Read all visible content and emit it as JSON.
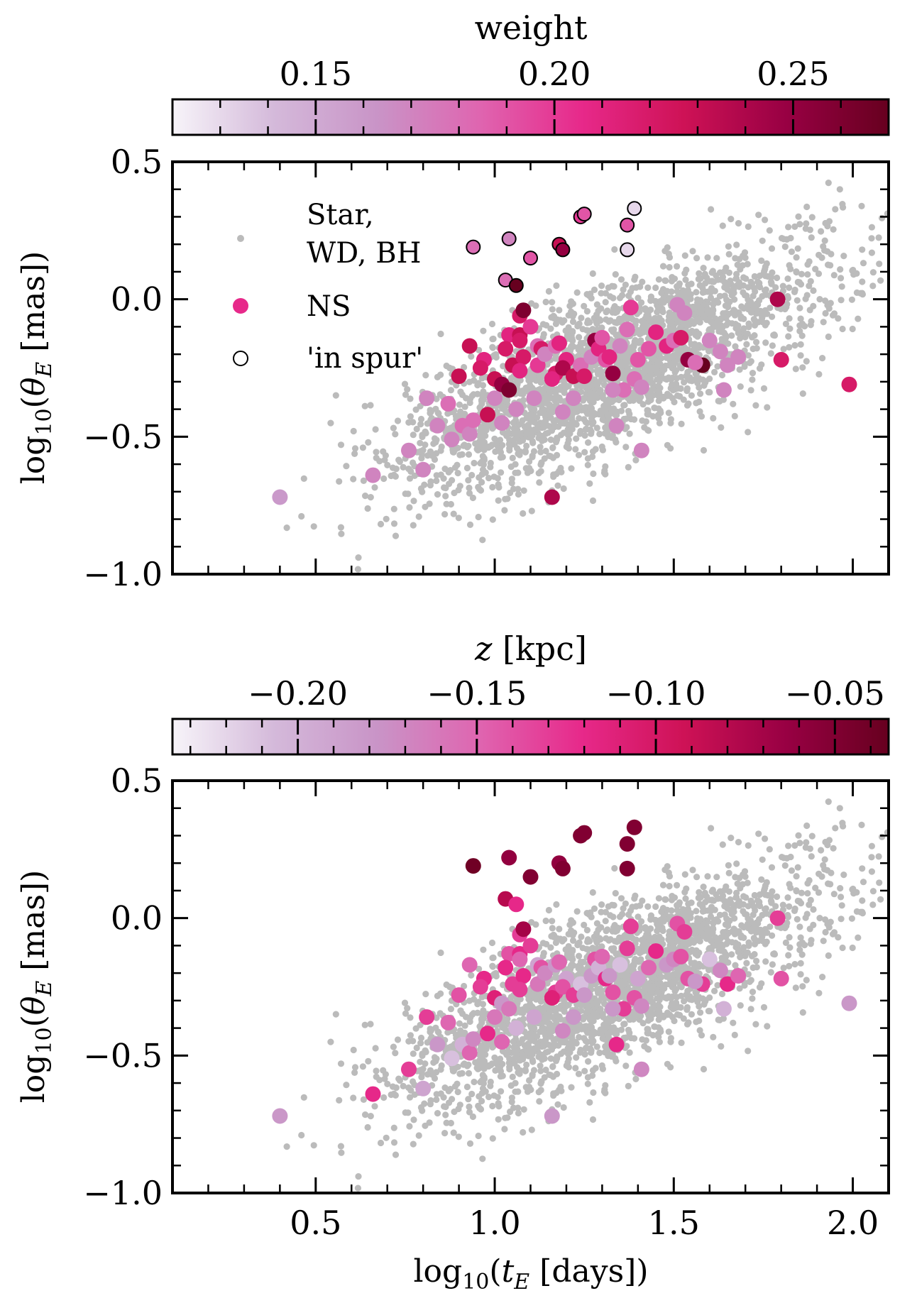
{
  "chart_data": [
    {
      "type": "scatter",
      "panel": "top",
      "xlabel_main": "log",
      "xlabel_sub": "10",
      "xlabel_var": "t",
      "xlabel_var_sub": "E",
      "xlabel_units": "[days]",
      "ylabel_main": "log",
      "ylabel_sub": "10",
      "ylabel_var": "θ",
      "ylabel_var_sub": "E",
      "ylabel_units": "[mas]",
      "xlim": [
        0.1,
        2.1
      ],
      "ylim": [
        -1.0,
        0.5
      ],
      "xticks": [
        0.5,
        1.0,
        1.5,
        2.0
      ],
      "yticks": [
        "0.5",
        "0.0",
        "−0.5",
        "−1.0"
      ],
      "ytick_values": [
        0.5,
        0.0,
        -0.5,
        -1.0
      ],
      "colorbar": {
        "label": "weight",
        "range": [
          0.12,
          0.27
        ],
        "ticks": [
          0.15,
          0.2,
          0.25
        ],
        "tick_labels": [
          "0.15",
          "0.20",
          "0.25"
        ],
        "colormap": [
          "#f7f4f9",
          "#d4b9da",
          "#c994c7",
          "#df65b0",
          "#e7298a",
          "#ce1256",
          "#980043",
          "#67001f"
        ]
      },
      "legend": {
        "position": "top-left",
        "entries": [
          "Star,",
          "WD, BH",
          "NS",
          "'in spur'"
        ]
      },
      "background_series": {
        "name": "Star, WD, BH",
        "color": "#bbbbbb",
        "seed": 7,
        "count": 2600
      },
      "ns_series": {
        "name": "NS",
        "points": [
          [
            0.94,
            0.19,
            0.18
          ],
          [
            1.04,
            0.22,
            0.17
          ],
          [
            1.1,
            0.15,
            0.19
          ],
          [
            1.18,
            0.2,
            0.23
          ],
          [
            1.19,
            0.18,
            0.25
          ],
          [
            1.24,
            0.3,
            0.2
          ],
          [
            1.25,
            0.31,
            0.19
          ],
          [
            1.37,
            0.27,
            0.19
          ],
          [
            1.39,
            0.33,
            0.13
          ],
          [
            1.37,
            0.18,
            0.13
          ],
          [
            1.03,
            0.07,
            0.18
          ],
          [
            1.06,
            0.05,
            0.27
          ],
          [
            0.9,
            -0.28,
            0.23
          ],
          [
            0.93,
            -0.17,
            0.23
          ],
          [
            0.97,
            -0.22,
            0.21
          ],
          [
            0.96,
            -0.25,
            0.22
          ],
          [
            1.0,
            -0.29,
            0.23
          ],
          [
            1.02,
            -0.31,
            0.25
          ],
          [
            1.04,
            -0.33,
            0.26
          ],
          [
            1.04,
            -0.13,
            0.21
          ],
          [
            1.03,
            -0.18,
            0.22
          ],
          [
            1.05,
            -0.24,
            0.23
          ],
          [
            1.07,
            -0.06,
            0.22
          ],
          [
            1.08,
            -0.04,
            0.26
          ],
          [
            1.07,
            -0.13,
            0.23
          ],
          [
            1.07,
            -0.15,
            0.22
          ],
          [
            1.08,
            -0.21,
            0.22
          ],
          [
            1.07,
            -0.26,
            0.21
          ],
          [
            1.1,
            -0.1,
            0.2
          ],
          [
            1.12,
            -0.17,
            0.18
          ],
          [
            1.13,
            -0.18,
            0.22
          ],
          [
            1.12,
            -0.24,
            0.2
          ],
          [
            1.14,
            -0.2,
            0.17
          ],
          [
            1.17,
            -0.17,
            0.18
          ],
          [
            1.18,
            -0.16,
            0.21
          ],
          [
            1.17,
            -0.27,
            0.22
          ],
          [
            1.16,
            -0.29,
            0.21
          ],
          [
            1.2,
            -0.22,
            0.21
          ],
          [
            1.19,
            -0.25,
            0.24
          ],
          [
            1.22,
            -0.28,
            0.23
          ],
          [
            1.24,
            -0.24,
            0.18
          ],
          [
            1.25,
            -0.28,
            0.22
          ],
          [
            1.27,
            -0.21,
            0.17
          ],
          [
            1.28,
            -0.15,
            0.25
          ],
          [
            1.29,
            -0.18,
            0.21
          ],
          [
            1.3,
            -0.14,
            0.19
          ],
          [
            1.31,
            -0.22,
            0.19
          ],
          [
            1.33,
            -0.27,
            0.25
          ],
          [
            1.32,
            -0.21,
            0.21
          ],
          [
            1.35,
            -0.17,
            0.17
          ],
          [
            1.36,
            -0.33,
            0.18
          ],
          [
            1.38,
            -0.03,
            0.2
          ],
          [
            1.37,
            -0.11,
            0.18
          ],
          [
            1.4,
            -0.22,
            0.19
          ],
          [
            1.43,
            -0.18,
            0.19
          ],
          [
            1.45,
            -0.12,
            0.21
          ],
          [
            1.48,
            -0.17,
            0.21
          ],
          [
            1.5,
            -0.15,
            0.18
          ],
          [
            1.52,
            -0.14,
            0.22
          ],
          [
            1.54,
            -0.22,
            0.25
          ],
          [
            1.58,
            -0.24,
            0.27
          ],
          [
            1.6,
            -0.15,
            0.17
          ],
          [
            1.63,
            -0.19,
            0.17
          ],
          [
            1.65,
            -0.24,
            0.17
          ],
          [
            1.68,
            -0.21,
            0.17
          ],
          [
            1.79,
            0.0,
            0.24
          ],
          [
            1.8,
            -0.22,
            0.22
          ],
          [
            1.99,
            -0.31,
            0.22
          ],
          [
            1.16,
            -0.72,
            0.24
          ],
          [
            1.33,
            -0.33,
            0.17
          ],
          [
            1.39,
            -0.29,
            0.18
          ],
          [
            1.22,
            -0.36,
            0.17
          ],
          [
            1.11,
            -0.36,
            0.17
          ],
          [
            1.0,
            -0.36,
            0.17
          ],
          [
            0.87,
            -0.38,
            0.18
          ],
          [
            0.84,
            -0.46,
            0.17
          ],
          [
            0.88,
            -0.51,
            0.17
          ],
          [
            0.91,
            -0.46,
            0.18
          ],
          [
            0.93,
            -0.49,
            0.17
          ],
          [
            0.76,
            -0.55,
            0.17
          ],
          [
            0.8,
            -0.62,
            0.17
          ],
          [
            0.66,
            -0.64,
            0.17
          ],
          [
            0.4,
            -0.72,
            0.16
          ],
          [
            0.98,
            -0.42,
            0.23
          ],
          [
            1.02,
            -0.45,
            0.17
          ],
          [
            1.06,
            -0.4,
            0.17
          ],
          [
            1.19,
            -0.41,
            0.17
          ],
          [
            1.41,
            -0.55,
            0.17
          ],
          [
            0.81,
            -0.36,
            0.17
          ],
          [
            0.94,
            -0.44,
            0.18
          ],
          [
            1.51,
            -0.02,
            0.17
          ],
          [
            1.53,
            -0.05,
            0.17
          ],
          [
            1.41,
            -0.32,
            0.17
          ],
          [
            1.34,
            -0.46,
            0.17
          ],
          [
            1.56,
            -0.23,
            0.18
          ],
          [
            1.64,
            -0.33,
            0.17
          ]
        ],
        "in_spur_count": 12
      }
    },
    {
      "type": "scatter",
      "panel": "bottom",
      "xlabel_main": "log",
      "xlabel_sub": "10",
      "xlabel_var": "t",
      "xlabel_var_sub": "E",
      "xlabel_units": "[days]",
      "ylabel_main": "log",
      "ylabel_sub": "10",
      "ylabel_var": "θ",
      "ylabel_var_sub": "E",
      "ylabel_units": "[mas]",
      "xlim": [
        0.1,
        2.1
      ],
      "ylim": [
        -1.0,
        0.5
      ],
      "xticks": [
        0.5,
        1.0,
        1.5,
        2.0
      ],
      "xtick_labels": [
        "0.5",
        "1.0",
        "1.5",
        "2.0"
      ],
      "yticks": [
        "0.5",
        "0.0",
        "−0.5",
        "−1.0"
      ],
      "ytick_values": [
        0.5,
        0.0,
        -0.5,
        -1.0
      ],
      "colorbar": {
        "label_var": "z",
        "label_units": "[kpc]",
        "range": [
          -0.235,
          -0.035
        ],
        "ticks": [
          -0.2,
          -0.15,
          -0.1,
          -0.05
        ],
        "tick_labels": [
          "−0.20",
          "−0.15",
          "−0.10",
          "−0.05"
        ],
        "colormap": [
          "#f7f4f9",
          "#d4b9da",
          "#c994c7",
          "#df65b0",
          "#e7298a",
          "#ce1256",
          "#980043",
          "#67001f"
        ]
      },
      "background_series": {
        "name": "Star, WD, BH",
        "color": "#bbbbbb",
        "seed": 7,
        "count": 2600
      },
      "ns_series": {
        "name": "NS",
        "points": [
          [
            0.94,
            0.19,
            -0.04
          ],
          [
            1.04,
            0.22,
            -0.06
          ],
          [
            1.1,
            0.15,
            -0.05
          ],
          [
            1.18,
            0.2,
            -0.06
          ],
          [
            1.19,
            0.18,
            -0.05
          ],
          [
            1.24,
            0.3,
            -0.05
          ],
          [
            1.25,
            0.31,
            -0.05
          ],
          [
            1.37,
            0.27,
            -0.05
          ],
          [
            1.39,
            0.33,
            -0.05
          ],
          [
            1.37,
            0.18,
            -0.05
          ],
          [
            1.03,
            0.07,
            -0.08
          ],
          [
            1.06,
            0.05,
            -0.12
          ],
          [
            0.9,
            -0.28,
            -0.14
          ],
          [
            0.93,
            -0.17,
            -0.15
          ],
          [
            0.97,
            -0.22,
            -0.12
          ],
          [
            0.96,
            -0.25,
            -0.13
          ],
          [
            1.0,
            -0.29,
            -0.11
          ],
          [
            1.02,
            -0.31,
            -0.18
          ],
          [
            1.04,
            -0.33,
            -0.16
          ],
          [
            1.04,
            -0.13,
            -0.14
          ],
          [
            1.03,
            -0.18,
            -0.12
          ],
          [
            1.05,
            -0.24,
            -0.13
          ],
          [
            1.07,
            -0.06,
            -0.13
          ],
          [
            1.08,
            -0.04,
            -0.07
          ],
          [
            1.07,
            -0.13,
            -0.12
          ],
          [
            1.07,
            -0.15,
            -0.15
          ],
          [
            1.08,
            -0.21,
            -0.12
          ],
          [
            1.07,
            -0.26,
            -0.13
          ],
          [
            1.1,
            -0.1,
            -0.13
          ],
          [
            1.12,
            -0.17,
            -0.19
          ],
          [
            1.13,
            -0.18,
            -0.14
          ],
          [
            1.12,
            -0.24,
            -0.16
          ],
          [
            1.14,
            -0.2,
            -0.17
          ],
          [
            1.17,
            -0.17,
            -0.18
          ],
          [
            1.18,
            -0.16,
            -0.15
          ],
          [
            1.17,
            -0.27,
            -0.13
          ],
          [
            1.16,
            -0.29,
            -0.11
          ],
          [
            1.2,
            -0.22,
            -0.19
          ],
          [
            1.19,
            -0.25,
            -0.14
          ],
          [
            1.22,
            -0.28,
            -0.13
          ],
          [
            1.24,
            -0.24,
            -0.21
          ],
          [
            1.25,
            -0.28,
            -0.18
          ],
          [
            1.27,
            -0.21,
            -0.18
          ],
          [
            1.28,
            -0.15,
            -0.14
          ],
          [
            1.29,
            -0.18,
            -0.2
          ],
          [
            1.3,
            -0.14,
            -0.15
          ],
          [
            1.31,
            -0.22,
            -0.12
          ],
          [
            1.33,
            -0.27,
            -0.14
          ],
          [
            1.32,
            -0.21,
            -0.18
          ],
          [
            1.35,
            -0.17,
            -0.21
          ],
          [
            1.36,
            -0.33,
            -0.13
          ],
          [
            1.38,
            -0.03,
            -0.13
          ],
          [
            1.37,
            -0.11,
            -0.13
          ],
          [
            1.4,
            -0.22,
            -0.19
          ],
          [
            1.43,
            -0.18,
            -0.15
          ],
          [
            1.45,
            -0.12,
            -0.12
          ],
          [
            1.48,
            -0.17,
            -0.18
          ],
          [
            1.5,
            -0.15,
            -0.17
          ],
          [
            1.52,
            -0.14,
            -0.14
          ],
          [
            1.54,
            -0.22,
            -0.14
          ],
          [
            1.58,
            -0.24,
            -0.13
          ],
          [
            1.6,
            -0.15,
            -0.21
          ],
          [
            1.63,
            -0.19,
            -0.17
          ],
          [
            1.65,
            -0.24,
            -0.12
          ],
          [
            1.68,
            -0.21,
            -0.15
          ],
          [
            1.79,
            0.0,
            -0.13
          ],
          [
            1.8,
            -0.22,
            -0.14
          ],
          [
            1.99,
            -0.31,
            -0.18
          ],
          [
            1.16,
            -0.72,
            -0.18
          ],
          [
            1.33,
            -0.33,
            -0.18
          ],
          [
            1.39,
            -0.29,
            -0.14
          ],
          [
            1.22,
            -0.36,
            -0.18
          ],
          [
            1.11,
            -0.36,
            -0.19
          ],
          [
            1.0,
            -0.36,
            -0.16
          ],
          [
            0.87,
            -0.38,
            -0.15
          ],
          [
            0.84,
            -0.46,
            -0.18
          ],
          [
            0.88,
            -0.51,
            -0.21
          ],
          [
            0.91,
            -0.46,
            -0.2
          ],
          [
            0.93,
            -0.49,
            -0.15
          ],
          [
            0.76,
            -0.55,
            -0.13
          ],
          [
            0.8,
            -0.62,
            -0.19
          ],
          [
            0.66,
            -0.64,
            -0.12
          ],
          [
            0.4,
            -0.72,
            -0.18
          ],
          [
            0.98,
            -0.42,
            -0.12
          ],
          [
            1.02,
            -0.45,
            -0.15
          ],
          [
            1.06,
            -0.4,
            -0.2
          ],
          [
            1.19,
            -0.41,
            -0.17
          ],
          [
            1.41,
            -0.55,
            -0.17
          ],
          [
            0.81,
            -0.36,
            -0.13
          ],
          [
            0.94,
            -0.44,
            -0.17
          ],
          [
            1.51,
            -0.02,
            -0.14
          ],
          [
            1.53,
            -0.05,
            -0.13
          ],
          [
            1.41,
            -0.32,
            -0.17
          ],
          [
            1.34,
            -0.46,
            -0.12
          ],
          [
            1.56,
            -0.23,
            -0.18
          ],
          [
            1.64,
            -0.33,
            -0.2
          ]
        ],
        "in_spur_count": 0
      }
    }
  ]
}
